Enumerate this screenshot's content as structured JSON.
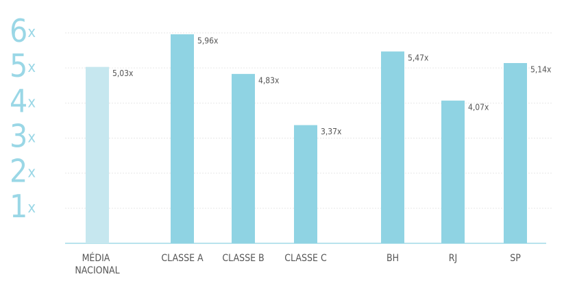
{
  "chart_data": {
    "type": "bar",
    "categories": [
      "MÉDIA\nNACIONAL",
      "CLASSE A",
      "CLASSE B",
      "CLASSE C",
      "BH",
      "RJ",
      "SP"
    ],
    "values": [
      5.03,
      5.96,
      4.83,
      3.37,
      5.47,
      4.07,
      5.14
    ],
    "value_labels": [
      "5,03x",
      "5,96x",
      "4,83x",
      "3,37x",
      "5,47x",
      "4,07x",
      "5,14x"
    ],
    "colors": [
      "#c6e7ef",
      "#8fd3e3",
      "#8fd3e3",
      "#8fd3e3",
      "#8fd3e3",
      "#8fd3e3",
      "#8fd3e3"
    ],
    "ylim": [
      0,
      6
    ],
    "yticks": [
      {
        "value": 1,
        "label": "1x"
      },
      {
        "value": 2,
        "label": "2x"
      },
      {
        "value": 3,
        "label": "3x"
      },
      {
        "value": 4,
        "label": "4x"
      },
      {
        "value": 5,
        "label": "5x"
      },
      {
        "value": 6,
        "label": "6x"
      }
    ],
    "grid": true
  }
}
